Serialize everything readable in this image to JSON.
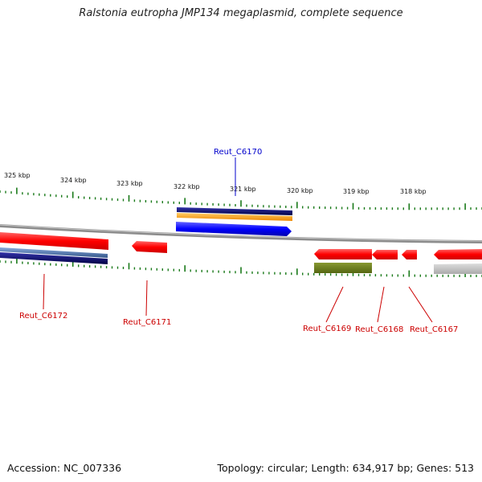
{
  "title": "Ralstonia eutropha JMP134 megaplasmid, complete sequence",
  "footer": {
    "accession": "Accession: NC_007336",
    "summary": "Topology: circular; Length: 634,917 bp; Genes: 513"
  },
  "ruler": {
    "labels": [
      "325 kbp",
      "324 kbp",
      "323 kbp",
      "322 kbp",
      "321 kbp",
      "320 kbp",
      "319 kbp",
      "318 kbp"
    ]
  },
  "genes": [
    {
      "name": "Reut_C6170",
      "color": "#0000cc"
    },
    {
      "name": "Reut_C6172",
      "color": "#cc0000"
    },
    {
      "name": "Reut_C6171",
      "color": "#cc0000"
    },
    {
      "name": "Reut_C6169",
      "color": "#cc0000"
    },
    {
      "name": "Reut_C6168",
      "color": "#cc0000"
    },
    {
      "name": "Reut_C6167",
      "color": "#cc0000"
    }
  ],
  "colors": {
    "backbone": "#8c8c8c",
    "tick": "#1a7a1a",
    "forward_cds": "#0000ff",
    "reverse_cds": "#ff0000",
    "navy": "#000066",
    "orange": "#ff9900",
    "steelblue": "#4477aa",
    "olive": "#667722",
    "gray": "#bbbbbb"
  }
}
